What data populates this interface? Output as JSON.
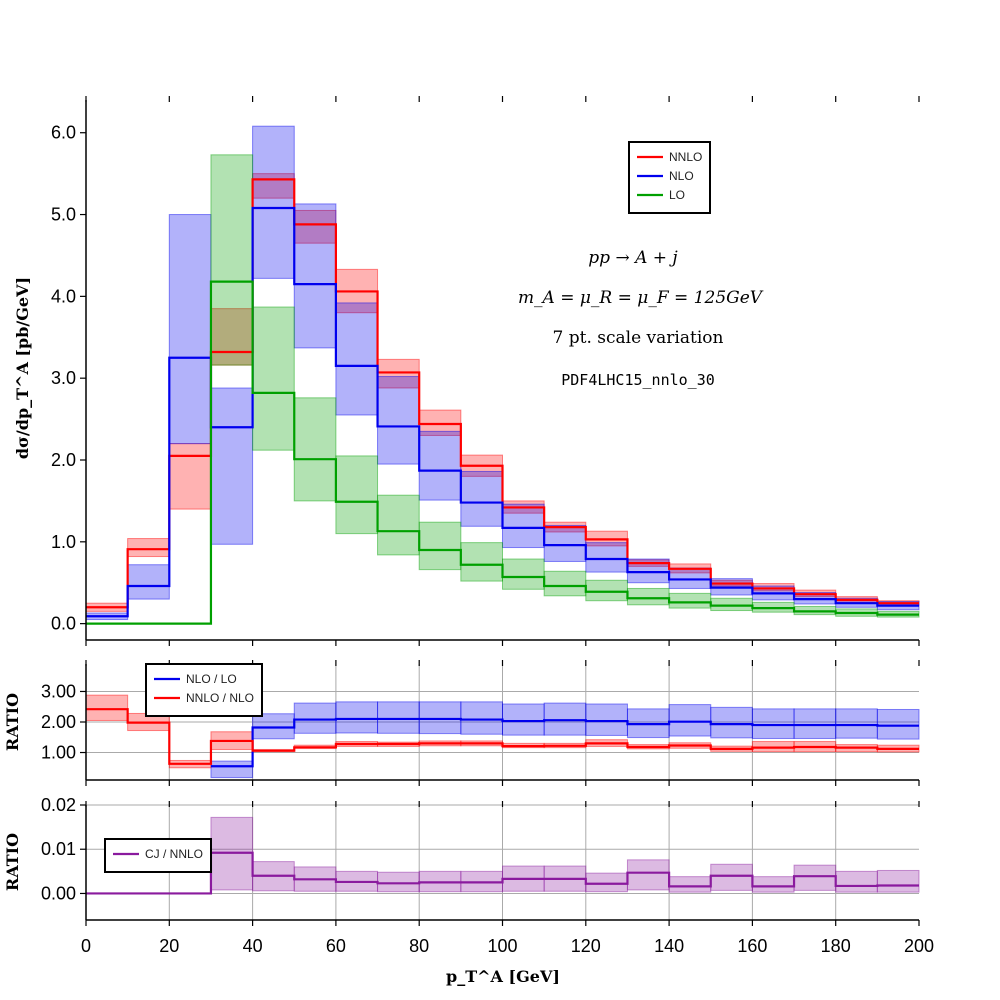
{
  "chart_data": [
    {
      "type": "line",
      "style": "step-with-bands",
      "xlim": [
        0,
        200
      ],
      "ylim": [
        -0.2,
        6.4
      ],
      "yticks": [
        "0.0",
        "1.0",
        "2.0",
        "3.0",
        "4.0",
        "5.0",
        "6.0"
      ],
      "ylabel": "dσ/dp_T^A [pb/GeV]",
      "grid": false,
      "legend": "top-right",
      "annotations": [
        "pp → A + j",
        "m_A = μ_R = μ_F = 125GeV",
        "7 pt. scale variation",
        "PDF4LHC15_nnlo_30"
      ],
      "bin_edges": [
        0,
        10,
        20,
        30,
        40,
        50,
        60,
        70,
        80,
        90,
        100,
        110,
        120,
        130,
        140,
        150,
        160,
        170,
        180,
        190,
        200
      ],
      "series": [
        {
          "name": "NNLO",
          "color": "#ff0000",
          "values": [
            0.2,
            0.91,
            2.05,
            3.32,
            5.43,
            4.88,
            4.06,
            3.07,
            2.44,
            1.93,
            1.42,
            1.18,
            1.03,
            0.74,
            0.67,
            0.49,
            0.43,
            0.36,
            0.29,
            0.25
          ],
          "lower": [
            0.15,
            0.82,
            1.4,
            3.16,
            5.2,
            4.65,
            3.8,
            2.88,
            2.3,
            1.8,
            1.35,
            1.12,
            0.95,
            0.7,
            0.62,
            0.46,
            0.4,
            0.33,
            0.26,
            0.22
          ],
          "upper": [
            0.25,
            1.04,
            2.2,
            3.85,
            5.5,
            5.05,
            4.33,
            3.23,
            2.61,
            2.06,
            1.5,
            1.24,
            1.13,
            0.78,
            0.73,
            0.53,
            0.49,
            0.41,
            0.33,
            0.28
          ]
        },
        {
          "name": "NLO",
          "color": "#0000ee",
          "values": [
            0.09,
            0.46,
            3.25,
            2.4,
            5.08,
            4.15,
            3.15,
            2.41,
            1.87,
            1.48,
            1.17,
            0.96,
            0.79,
            0.63,
            0.54,
            0.44,
            0.37,
            0.3,
            0.25,
            0.22
          ],
          "lower": [
            0.05,
            0.3,
            2.2,
            0.97,
            4.22,
            3.37,
            2.55,
            1.95,
            1.51,
            1.19,
            0.93,
            0.76,
            0.63,
            0.5,
            0.43,
            0.35,
            0.29,
            0.24,
            0.2,
            0.17
          ],
          "upper": [
            0.13,
            0.72,
            5.0,
            2.88,
            6.08,
            5.13,
            3.92,
            3.02,
            2.35,
            1.86,
            1.46,
            1.2,
            0.99,
            0.79,
            0.68,
            0.55,
            0.46,
            0.38,
            0.31,
            0.27
          ]
        },
        {
          "name": "LO",
          "color": "#00a000",
          "values": [
            0,
            0,
            0,
            4.18,
            2.82,
            2.01,
            1.49,
            1.13,
            0.9,
            0.72,
            0.57,
            0.46,
            0.39,
            0.31,
            0.26,
            0.22,
            0.19,
            0.15,
            0.13,
            0.11
          ],
          "lower": [
            0,
            0,
            0,
            3.16,
            2.12,
            1.5,
            1.1,
            0.84,
            0.66,
            0.52,
            0.42,
            0.34,
            0.28,
            0.23,
            0.19,
            0.16,
            0.14,
            0.11,
            0.09,
            0.08
          ],
          "upper": [
            0,
            0,
            0,
            5.73,
            3.87,
            2.76,
            2.05,
            1.57,
            1.24,
            0.99,
            0.79,
            0.64,
            0.53,
            0.43,
            0.37,
            0.31,
            0.26,
            0.21,
            0.18,
            0.15
          ]
        }
      ]
    },
    {
      "type": "line",
      "style": "step-with-bands",
      "xlim": [
        0,
        200
      ],
      "ylim": [
        0.1,
        3.9
      ],
      "yticks": [
        "1.00",
        "2.00",
        "3.00"
      ],
      "ylabel": "RATIO",
      "grid": true,
      "legend": "top-left",
      "bin_edges": [
        0,
        10,
        20,
        30,
        40,
        50,
        60,
        70,
        80,
        90,
        100,
        110,
        120,
        130,
        140,
        150,
        160,
        170,
        180,
        190,
        200
      ],
      "series": [
        {
          "name": "NLO / LO",
          "color": "#0000ee",
          "values": [
            null,
            null,
            null,
            0.55,
            1.82,
            2.08,
            2.1,
            2.1,
            2.1,
            2.08,
            2.03,
            2.06,
            2.03,
            1.93,
            2.01,
            1.93,
            1.9,
            1.9,
            1.9,
            1.88
          ],
          "lower": [
            null,
            null,
            null,
            0.18,
            1.45,
            1.63,
            1.64,
            1.63,
            1.62,
            1.6,
            1.57,
            1.57,
            1.56,
            1.49,
            1.54,
            1.48,
            1.46,
            1.46,
            1.47,
            1.44
          ],
          "upper": [
            null,
            null,
            null,
            0.72,
            2.27,
            2.62,
            2.66,
            2.66,
            2.66,
            2.66,
            2.59,
            2.62,
            2.59,
            2.43,
            2.57,
            2.48,
            2.43,
            2.43,
            2.43,
            2.41
          ]
        },
        {
          "name": "NNLO / NLO",
          "color": "#ff0000",
          "values": [
            2.42,
            1.98,
            0.63,
            1.38,
            1.06,
            1.17,
            1.28,
            1.28,
            1.3,
            1.3,
            1.21,
            1.22,
            1.3,
            1.18,
            1.23,
            1.12,
            1.16,
            1.18,
            1.16,
            1.12
          ],
          "lower": [
            2.05,
            1.72,
            0.5,
            1.1,
            1.03,
            1.13,
            1.2,
            1.2,
            1.22,
            1.22,
            1.16,
            1.16,
            1.2,
            1.12,
            1.14,
            1.04,
            1.03,
            1.03,
            1.03,
            1.02
          ],
          "upper": [
            2.88,
            2.28,
            0.74,
            1.68,
            1.1,
            1.24,
            1.36,
            1.34,
            1.38,
            1.38,
            1.3,
            1.3,
            1.42,
            1.26,
            1.32,
            1.21,
            1.36,
            1.36,
            1.26,
            1.24
          ]
        }
      ]
    },
    {
      "type": "line",
      "style": "step-with-bands",
      "xlim": [
        0,
        200
      ],
      "ylim": [
        -0.006,
        0.02
      ],
      "yticks": [
        "0.00",
        "0.01",
        "0.02"
      ],
      "ylabel": "RATIO",
      "xlabel": "p_T^A [GeV]",
      "xticks": [
        "0",
        "20",
        "40",
        "60",
        "80",
        "100",
        "120",
        "140",
        "160",
        "180",
        "200"
      ],
      "grid": true,
      "legend": "top-left",
      "bin_edges": [
        0,
        10,
        20,
        30,
        40,
        50,
        60,
        70,
        80,
        90,
        100,
        110,
        120,
        130,
        140,
        150,
        160,
        170,
        180,
        190,
        200
      ],
      "series": [
        {
          "name": "CJ / NNLO",
          "color": "#8a1a9e",
          "values": [
            0,
            0,
            0,
            0.0092,
            0.004,
            0.0032,
            0.0026,
            0.0023,
            0.0025,
            0.0025,
            0.0033,
            0.0033,
            0.0022,
            0.0047,
            0.0016,
            0.004,
            0.0016,
            0.0039,
            0.0017,
            0.0018
          ],
          "lower": [
            0,
            0,
            0,
            0.0008,
            0.0006,
            0.0005,
            0.0005,
            0.0004,
            0.0004,
            0.0004,
            0.0005,
            0.0005,
            0.0004,
            0.0008,
            0.0003,
            0.0007,
            0.0003,
            0.0007,
            0.0003,
            0.0003
          ],
          "upper": [
            0,
            0,
            0,
            0.0172,
            0.0072,
            0.006,
            0.005,
            0.0048,
            0.005,
            0.005,
            0.0062,
            0.0062,
            0.0046,
            0.0076,
            0.0038,
            0.0066,
            0.0038,
            0.0064,
            0.005,
            0.0052
          ]
        }
      ]
    }
  ]
}
